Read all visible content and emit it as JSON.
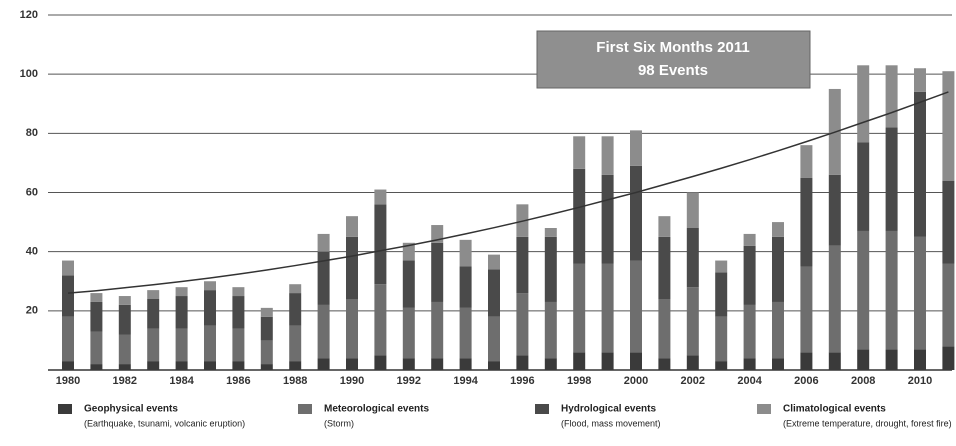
{
  "chart_data": {
    "type": "stacked_bar",
    "categories": [
      "1980",
      null,
      "1982",
      null,
      "1984",
      null,
      "1986",
      null,
      "1988",
      null,
      "1990",
      null,
      "1992",
      null,
      "1994",
      null,
      "1996",
      null,
      "1998",
      null,
      "2000",
      null,
      "2002",
      null,
      "2004",
      null,
      "2006",
      null,
      "2008",
      null,
      "2010",
      null
    ],
    "series": [
      {
        "name": "Geophysical events",
        "description": "(Earthquake, tsunami, volcanic eruption)",
        "color": "#3a3a3a",
        "values": [
          3,
          2,
          2,
          3,
          3,
          3,
          3,
          2,
          3,
          4,
          4,
          5,
          4,
          4,
          4,
          3,
          5,
          4,
          6,
          6,
          6,
          4,
          5,
          3,
          4,
          4,
          6,
          6,
          7,
          7,
          7,
          8
        ]
      },
      {
        "name": "Meteorological events",
        "description": "(Storm)",
        "color": "#6e6e6e",
        "values": [
          15,
          11,
          10,
          11,
          11,
          12,
          11,
          8,
          12,
          18,
          20,
          24,
          17,
          19,
          17,
          15,
          21,
          19,
          30,
          30,
          31,
          20,
          23,
          15,
          18,
          19,
          29,
          36,
          40,
          40,
          38,
          28
        ]
      },
      {
        "name": "Hydrological events",
        "description": "(Flood, mass movement)",
        "color": "#4a4a4a",
        "values": [
          14,
          10,
          10,
          10,
          11,
          12,
          11,
          8,
          11,
          18,
          21,
          27,
          16,
          20,
          14,
          16,
          19,
          22,
          32,
          30,
          32,
          21,
          20,
          15,
          20,
          22,
          30,
          24,
          30,
          35,
          49,
          28
        ]
      },
      {
        "name": "Climatological events",
        "description": "(Extreme temperature, drought, forest fire)",
        "color": "#8c8c8c",
        "values": [
          5,
          3,
          3,
          3,
          3,
          3,
          3,
          3,
          3,
          6,
          7,
          5,
          6,
          6,
          9,
          5,
          11,
          3,
          11,
          13,
          12,
          7,
          12,
          4,
          4,
          5,
          11,
          29,
          26,
          21,
          8,
          37
        ]
      }
    ],
    "trend_line": {
      "color": "#333333",
      "values": [
        26,
        26.8,
        27.8,
        28.8,
        29.9,
        31.1,
        32.4,
        33.8,
        35.3,
        36.9,
        38.5,
        40.3,
        42.1,
        44.0,
        46.0,
        48.1,
        50.3,
        52.6,
        55.0,
        57.5,
        60.0,
        62.7,
        65.4,
        68.2,
        71.1,
        74.1,
        77.2,
        80.4,
        83.7,
        87.0,
        90.5,
        94.0
      ]
    },
    "annotation": {
      "line1": "First Six Months 2011",
      "line2": "98 Events"
    },
    "ylim": [
      0,
      120
    ],
    "yticks": [
      20,
      40,
      60,
      80,
      100,
      120
    ],
    "grid": true
  }
}
